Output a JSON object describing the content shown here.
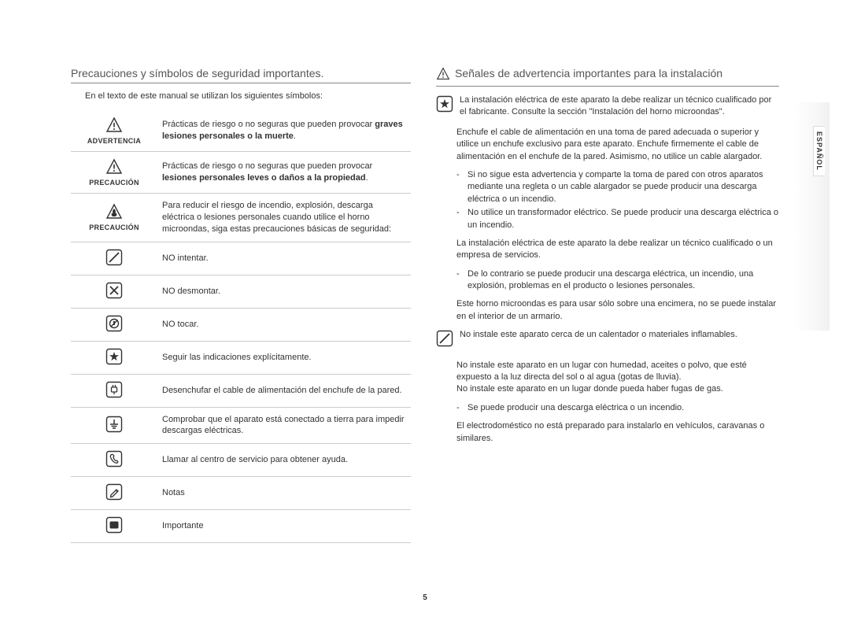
{
  "page_number": "5",
  "side_tab": "ESPAÑOL",
  "colors": {
    "text": "#333333",
    "rule": "#cccccc",
    "heading_rule": "#888888",
    "icon_stroke": "#333333"
  },
  "left": {
    "title": "Precauciones y símbolos de seguridad importantes.",
    "intro": "En el texto de este manual se utilizan los siguientes símbolos:",
    "rows": [
      {
        "icon": "warn-triangle-excl",
        "label": "ADVERTENCIA",
        "desc_pre": "Prácticas de riesgo o no seguras que pueden provocar ",
        "desc_bold": "graves lesiones personales o la muerte",
        "desc_post": "."
      },
      {
        "icon": "warn-triangle-excl",
        "label": "PRECAUCIÓN",
        "desc_pre": "Prácticas de riesgo o no seguras que pueden provocar ",
        "desc_bold": "lesiones personales leves o daños a la propiedad",
        "desc_post": "."
      },
      {
        "icon": "warn-triangle-fire",
        "label": "PRECAUCIÓN",
        "desc_pre": "Para reducir el riesgo de incendio, explosión, descarga eléctrica o lesiones personales cuando utilice el horno microondas, siga estas precauciones básicas de seguridad:",
        "desc_bold": "",
        "desc_post": ""
      },
      {
        "icon": "sq-slash",
        "label": "",
        "desc_pre": "NO intentar.",
        "desc_bold": "",
        "desc_post": ""
      },
      {
        "icon": "sq-x",
        "label": "",
        "desc_pre": "NO desmontar.",
        "desc_bold": "",
        "desc_post": ""
      },
      {
        "icon": "sq-notouch",
        "label": "",
        "desc_pre": "NO tocar.",
        "desc_bold": "",
        "desc_post": ""
      },
      {
        "icon": "sq-star",
        "label": "",
        "desc_pre": "Seguir las indicaciones explícitamente.",
        "desc_bold": "",
        "desc_post": ""
      },
      {
        "icon": "sq-plug",
        "label": "",
        "desc_pre": "Desenchufar el cable de alimentación del enchufe de la pared.",
        "desc_bold": "",
        "desc_post": ""
      },
      {
        "icon": "sq-ground",
        "label": "",
        "desc_pre": "Comprobar que el aparato está conectado a tierra para impedir descargas eléctricas.",
        "desc_bold": "",
        "desc_post": ""
      },
      {
        "icon": "sq-phone",
        "label": "",
        "desc_pre": "Llamar al centro de servicio para obtener ayuda.",
        "desc_bold": "",
        "desc_post": ""
      },
      {
        "icon": "sq-note",
        "label": "",
        "desc_pre": "Notas",
        "desc_bold": "",
        "desc_post": ""
      },
      {
        "icon": "sq-important",
        "label": "",
        "desc_pre": "Importante",
        "desc_bold": "",
        "desc_post": ""
      }
    ]
  },
  "right": {
    "title": "Señales de advertencia importantes para la instalación",
    "title_icon": "warn-triangle-excl",
    "blocks": [
      {
        "marker": "sq-star",
        "paras": [
          "La instalación eléctrica de este aparato la debe realizar un técnico cualificado por el fabricante. Consulte la sección \"Instalación del horno microondas\".",
          "Enchufe el cable de alimentación en una toma de pared adecuada o superior y utilice un enchufe exclusivo para este aparato. Enchufe firmemente el cable de alimentación en el enchufe de la pared. Asimismo, no utilice un cable alargador."
        ],
        "dashes": [
          "Si no sigue esta advertencia y comparte la toma de pared con otros aparatos mediante una regleta o un cable alargador se puede producir una descarga eléctrica o un incendio.",
          "No utilice un transformador eléctrico. Se puede producir una descarga eléctrica o un incendio."
        ],
        "paras2": [
          "La instalación eléctrica de este aparato la debe realizar un técnico cualificado o un empresa de servicios."
        ],
        "dashes2": [
          "De lo contrario se puede producir una descarga eléctrica, un incendio, una explosión, problemas en el producto o lesiones personales."
        ],
        "paras3": [
          "Este horno microondas es para usar sólo sobre una encimera, no se puede instalar en el interior de un armario."
        ]
      },
      {
        "marker": "sq-slash",
        "paras": [
          "No instale este aparato cerca de un calentador o materiales inflamables.",
          "No instale este aparato en un lugar con humedad, aceites o polvo, que esté expuesto a la luz directa del sol o al agua (gotas de lluvia).\nNo instale este aparato en un lugar donde pueda haber fugas de gas."
        ],
        "dashes": [
          "Se puede producir una descarga eléctrica o un incendio."
        ],
        "paras2": [
          "El electrodoméstico no está preparado para instalarlo en vehículos, caravanas o similares."
        ],
        "dashes2": [],
        "paras3": []
      }
    ]
  }
}
